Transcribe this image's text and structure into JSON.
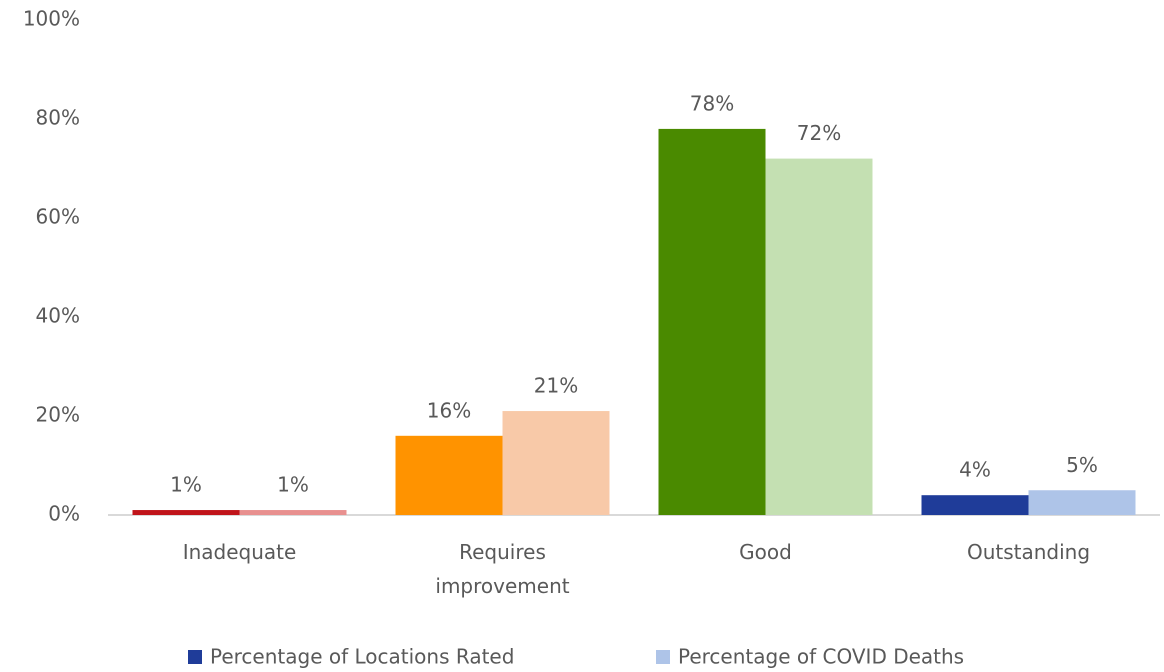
{
  "chart_data": {
    "type": "bar",
    "categories": [
      "Inadequate",
      "Requires improvement",
      "Good",
      "Outstanding"
    ],
    "series": [
      {
        "name": "Percentage of Locations Rated",
        "color": "#1f3c99",
        "colors": [
          "#c0141a",
          "#ff9300",
          "#4a8a00",
          "#1f3c99"
        ],
        "values": [
          1,
          16,
          78,
          4
        ],
        "value_labels": [
          "1%",
          "16%",
          "78%",
          "4%"
        ]
      },
      {
        "name": "Percentage of COVID Deaths",
        "color": "#aec4e8",
        "colors": [
          "#e8908f",
          "#f8c9a8",
          "#c4e0b2",
          "#aec4e8"
        ],
        "values": [
          1,
          21,
          72,
          5
        ],
        "value_labels": [
          "1%",
          "21%",
          "72%",
          "5%"
        ]
      }
    ],
    "ylim": [
      0,
      100
    ],
    "yticks": [
      {
        "value": 0,
        "label": "0%"
      },
      {
        "value": 20,
        "label": "20%"
      },
      {
        "value": 40,
        "label": "40%"
      },
      {
        "value": 60,
        "label": "60%"
      },
      {
        "value": 80,
        "label": "80%"
      },
      {
        "value": 100,
        "label": "100%"
      }
    ],
    "grid": false,
    "legend": "bottom"
  }
}
